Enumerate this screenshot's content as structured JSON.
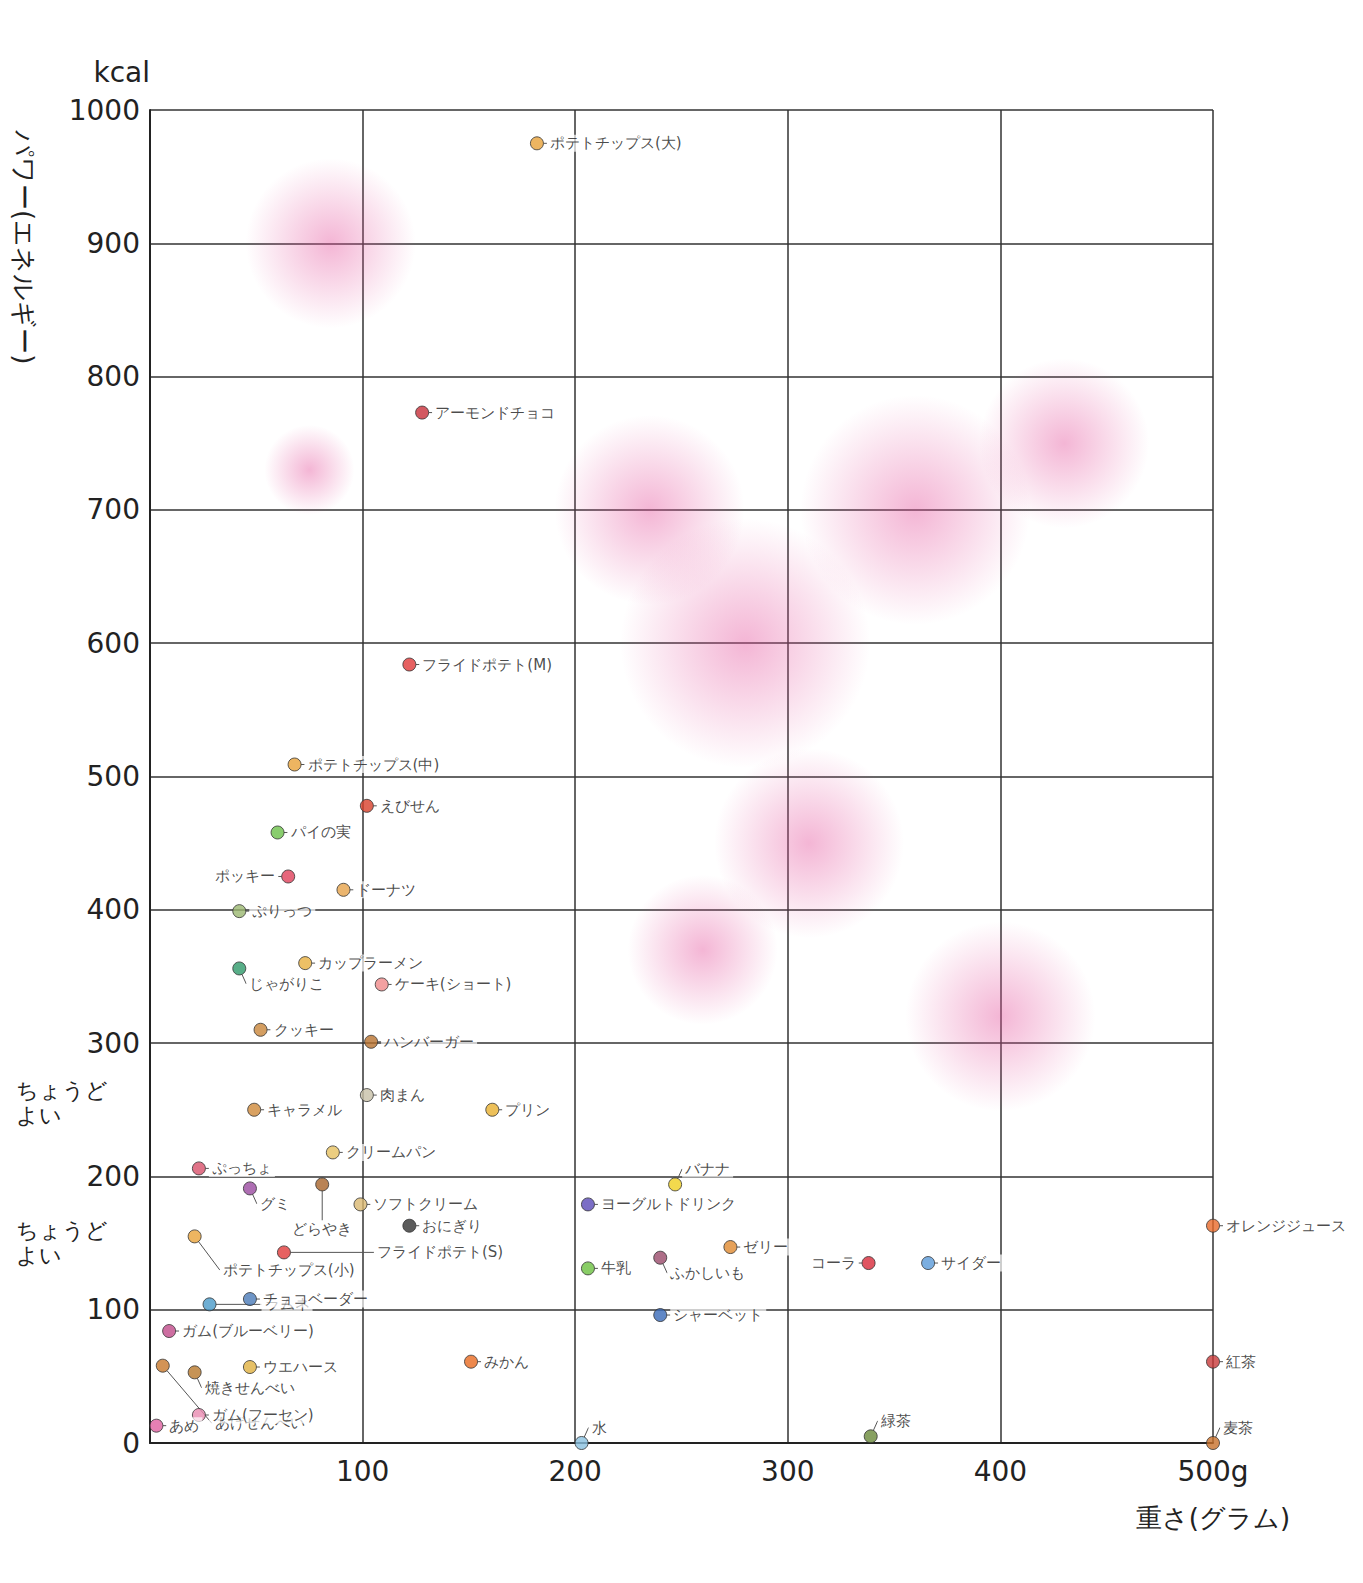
{
  "chart_data": {
    "type": "scatter",
    "xlabel": "重さ(グラム)",
    "ylabel": "パワー(エネルギー)",
    "y_unit": "kcal",
    "labels": [
      "ポテトチップス(大)",
      "アーモンドチョコ",
      "フライドポテト(M)",
      "ポテトチップス(中)",
      "えびせん",
      "ポッキー",
      "パイの実",
      "ぷりっつ",
      "ドーナツ",
      "カップラーメン",
      "ケーキ(ショート)",
      "じゃがりこ",
      "クッキー",
      "ハンバーガー",
      "肉まん",
      "キャラメル",
      "プリン",
      "ぷっちょ",
      "クリームパン",
      "ソフトクリーム",
      "グミ",
      "どらやき",
      "おにぎり",
      "ヨーグルトドリンク",
      "バナナ",
      "ゼリー",
      "牛乳",
      "ふかしいも",
      "シャーベット",
      "コーラ",
      "サイダー",
      "オレンジジュース",
      "紅茶",
      "麦茶",
      "緑茶",
      "水",
      "みかん",
      "ポテトチップス(小)",
      "フライドポテト(S)",
      "ガム(ブルーベリー)",
      "ラムネ",
      "チョコベーダー",
      "ウエハース",
      "あげせんべい",
      "焼きせんべい",
      "ガム(フーセン)",
      "あめ"
    ],
    "x": [
      182,
      128,
      122,
      68,
      102,
      65,
      60,
      42,
      91,
      73,
      109,
      42,
      52,
      104,
      102,
      49,
      161,
      23,
      86,
      99,
      47,
      81,
      122,
      206,
      247,
      273,
      206,
      240,
      240,
      338,
      366,
      500,
      500,
      500,
      339,
      203,
      151,
      21,
      63,
      9,
      28,
      47,
      47,
      6,
      21,
      23,
      3
    ],
    "values": [
      975,
      773,
      584,
      509,
      478,
      425,
      458,
      399,
      415,
      360,
      344,
      356,
      310,
      301,
      261,
      250,
      250,
      206,
      218,
      179,
      191,
      194,
      163,
      179,
      194,
      147,
      131,
      139,
      96,
      135,
      135,
      163,
      61,
      0,
      5,
      0,
      61,
      155,
      143,
      84,
      104,
      108,
      57,
      58,
      53,
      21,
      13
    ],
    "colors": [
      "#e8a33a",
      "#c8303a",
      "#e03a3a",
      "#e8a33a",
      "#d8402a",
      "#e0405a",
      "#6cc04a",
      "#9bb870",
      "#e6a24a",
      "#e8b040",
      "#f08a8a",
      "#2e9a6a",
      "#c9863a",
      "#b8722e",
      "#c8c0a8",
      "#d08a3a",
      "#e8b030",
      "#d8506a",
      "#e6c060",
      "#d9b870",
      "#9a4aa0",
      "#a8642a",
      "#333333",
      "#5a4ab8",
      "#f0d020",
      "#e08a30",
      "#6cc040",
      "#9a4a6a",
      "#3a6ab8",
      "#d82a3a",
      "#5a9ad8",
      "#e86a2a",
      "#c83a3a",
      "#c8702a",
      "#6a8a3a",
      "#8ac0e0",
      "#e86a20",
      "#e8a33a",
      "#e03a3a",
      "#c04a8a",
      "#4a9ac8",
      "#4a7ab8",
      "#e0b040",
      "#c8782a",
      "#b8782a",
      "#e88ab0",
      "#e060a0"
    ],
    "annotations": [
      {
        "text": "ちょうどよい",
        "y": 255
      },
      {
        "text": "ちょうどよい",
        "y": 150
      }
    ],
    "xlim": [
      0,
      500
    ],
    "ylim": [
      0,
      1000
    ],
    "xticks": [
      100,
      200,
      300,
      400,
      {
        "value": 500,
        "label": "500g"
      }
    ],
    "yticks": [
      0,
      100,
      200,
      300,
      400,
      500,
      600,
      700,
      800,
      900,
      1000
    ],
    "grid": true
  }
}
